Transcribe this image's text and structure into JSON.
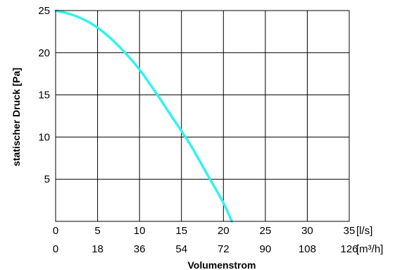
{
  "chart_data": {
    "type": "line",
    "title": "",
    "ylabel": "statischer Druck [Pa]",
    "xlabel": "Volumenstrom",
    "grid": true,
    "x_axis_primary": {
      "unit_label": "[l/s]",
      "range": [
        0,
        35
      ],
      "ticks": [
        "0",
        "5",
        "10",
        "15",
        "20",
        "25",
        "30",
        "35"
      ]
    },
    "x_axis_secondary": {
      "unit_label": "[m³/h]",
      "ticks": [
        "0",
        "18",
        "36",
        "54",
        "72",
        "90",
        "108",
        "126"
      ]
    },
    "y_axis": {
      "range": [
        0,
        25
      ],
      "ticks": [
        "5",
        "10",
        "15",
        "20",
        "25"
      ]
    },
    "series": [
      {
        "color": "#33f2ee",
        "x": [
          0,
          2,
          4,
          6,
          8,
          10,
          12,
          14,
          16,
          18,
          20,
          21
        ],
        "y": [
          25,
          24.5,
          23.6,
          22.2,
          20.3,
          18,
          15.2,
          12.2,
          9.2,
          5.7,
          2.2,
          0
        ]
      }
    ]
  }
}
